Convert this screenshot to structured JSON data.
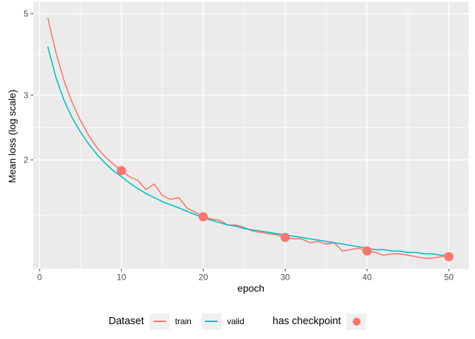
{
  "chart_data": {
    "type": "line",
    "title": "",
    "xlabel": "epoch",
    "ylabel": "Mean loss (log scale)",
    "y_scale": "log10",
    "x_ticks": [
      0,
      10,
      20,
      30,
      40,
      50
    ],
    "x_tick_labels": [
      "0",
      "10",
      "20",
      "30",
      "40",
      "50"
    ],
    "x_minor_ticks": [
      5,
      15,
      25,
      35,
      45
    ],
    "y_ticks": [
      5,
      3,
      2
    ],
    "y_tick_labels": [
      "5",
      "3",
      "2"
    ],
    "y_minor_ticks": [
      3.873,
      2.449,
      1.414
    ],
    "x_range": [
      -0.8,
      52.4
    ],
    "y_range": [
      1.01,
      5.39
    ],
    "grid": true,
    "legend_position": "bottom",
    "x": [
      1,
      2,
      3,
      4,
      5,
      6,
      7,
      8,
      9,
      10,
      11,
      12,
      13,
      14,
      15,
      16,
      17,
      18,
      19,
      20,
      21,
      22,
      23,
      24,
      25,
      26,
      27,
      28,
      29,
      30,
      31,
      32,
      33,
      34,
      35,
      36,
      37,
      38,
      39,
      40,
      41,
      42,
      43,
      44,
      45,
      46,
      47,
      48,
      49,
      50
    ],
    "series": [
      {
        "name": "train",
        "color": "#F8766D",
        "values": [
          4.88,
          3.92,
          3.28,
          2.86,
          2.56,
          2.33,
          2.16,
          2.04,
          1.95,
          1.87,
          1.8,
          1.76,
          1.66,
          1.72,
          1.6,
          1.56,
          1.58,
          1.48,
          1.44,
          1.4,
          1.38,
          1.37,
          1.33,
          1.33,
          1.31,
          1.28,
          1.27,
          1.26,
          1.25,
          1.23,
          1.22,
          1.22,
          1.19,
          1.2,
          1.18,
          1.19,
          1.13,
          1.14,
          1.15,
          1.13,
          1.12,
          1.1,
          1.11,
          1.11,
          1.1,
          1.09,
          1.08,
          1.08,
          1.09,
          1.09
        ]
      },
      {
        "name": "valid",
        "color": "#00BFC4",
        "values": [
          4.07,
          3.35,
          2.9,
          2.6,
          2.38,
          2.21,
          2.07,
          1.96,
          1.87,
          1.8,
          1.73,
          1.67,
          1.62,
          1.58,
          1.54,
          1.51,
          1.48,
          1.45,
          1.42,
          1.39,
          1.37,
          1.35,
          1.33,
          1.32,
          1.3,
          1.29,
          1.28,
          1.27,
          1.26,
          1.25,
          1.24,
          1.23,
          1.22,
          1.21,
          1.2,
          1.19,
          1.18,
          1.17,
          1.16,
          1.15,
          1.14,
          1.14,
          1.13,
          1.13,
          1.12,
          1.12,
          1.11,
          1.11,
          1.1,
          1.1
        ]
      }
    ],
    "checkpoints": {
      "label": "has checkpoint",
      "color": "#F8766D",
      "epochs": [
        10,
        20,
        30,
        40,
        50
      ],
      "values": [
        1.87,
        1.4,
        1.23,
        1.13,
        1.09
      ]
    }
  },
  "legend": {
    "dataset_title": "Dataset",
    "train_label": "train",
    "valid_label": "valid",
    "checkpoint_title": "has checkpoint"
  },
  "colors": {
    "panel_background": "#EBEBEB",
    "grid_major": "#FFFFFF",
    "grid_minor": "#FFFFFF",
    "tick_text": "#4D4D4D",
    "axis_title_text": "#000000",
    "train": "#F8766D",
    "valid": "#00BFC4",
    "checkpoint": "#F8766D",
    "legend_key_background": "#F0F0F0"
  }
}
